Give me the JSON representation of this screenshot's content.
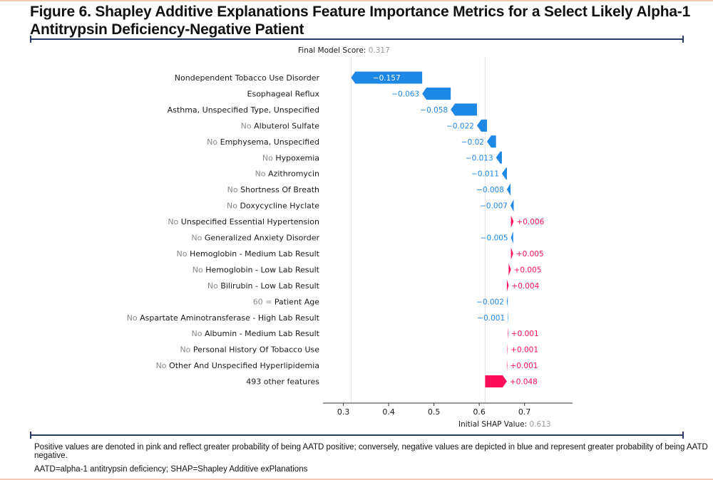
{
  "figure": {
    "title": "Figure 6. Shapley Additive Explanations Feature Importance Metrics for a Select Likely Alpha-1 Antitrypsin Deficiency-Negative Patient"
  },
  "footnotes": {
    "note1": "Positive values are denoted in pink and reflect greater probability of being AATD positive; conversely, negative values are depicted in blue and represent greater probability of being AATD negative.",
    "note2": "AATD=alpha-1 antitrypsin deficiency; SHAP=Shapley Additive exPlanations"
  },
  "colors": {
    "negative": "#1e88e5",
    "positive": "#ff0d57",
    "prefix_text": "#8a8a8a",
    "label_text": "#1a1a1a",
    "rule": "#2b3a67"
  },
  "chart_data": {
    "type": "waterfall",
    "final_score_label": "Final Model Score:",
    "final_score_value": "0.317",
    "final_score": 0.317,
    "base_label": "Initial SHAP Value:",
    "base_value_text": "0.613",
    "base_value": 0.613,
    "xlim": [
      0.255,
      0.806
    ],
    "xticks": [
      0.3,
      0.4,
      0.5,
      0.6,
      0.7
    ],
    "xtick_labels": [
      "0.3",
      "0.4",
      "0.5",
      "0.6",
      "0.7"
    ],
    "features": [
      {
        "prefix": "",
        "name": "Nondependent Tobacco Use Disorder",
        "value": -0.157,
        "label": "−0.157"
      },
      {
        "prefix": "",
        "name": "Esophageal Reflux",
        "value": -0.063,
        "label": "−0.063"
      },
      {
        "prefix": "",
        "name": "Asthma, Unspecified Type, Unspecified",
        "value": -0.058,
        "label": "−0.058"
      },
      {
        "prefix": "No",
        "name": "Albuterol Sulfate",
        "value": -0.022,
        "label": "−0.022"
      },
      {
        "prefix": "No",
        "name": "Emphysema, Unspecified",
        "value": -0.02,
        "label": "−0.02"
      },
      {
        "prefix": "No",
        "name": "Hypoxemia",
        "value": -0.013,
        "label": "−0.013"
      },
      {
        "prefix": "No",
        "name": "Azithromycin",
        "value": -0.011,
        "label": "−0.011"
      },
      {
        "prefix": "No",
        "name": "Shortness Of Breath",
        "value": -0.008,
        "label": "−0.008"
      },
      {
        "prefix": "No",
        "name": "Doxycycline Hyclate",
        "value": -0.007,
        "label": "−0.007"
      },
      {
        "prefix": "No",
        "name": "Unspecified Essential Hypertension",
        "value": 0.006,
        "label": "+0.006"
      },
      {
        "prefix": "No",
        "name": "Generalized Anxiety Disorder",
        "value": -0.005,
        "label": "−0.005"
      },
      {
        "prefix": "No",
        "name": "Hemoglobin - Medium Lab Result",
        "value": 0.005,
        "label": "+0.005"
      },
      {
        "prefix": "No",
        "name": "Hemoglobin - Low Lab Result",
        "value": 0.005,
        "label": "+0.005"
      },
      {
        "prefix": "No",
        "name": "Bilirubin - Low Lab Result",
        "value": 0.004,
        "label": "+0.004"
      },
      {
        "prefix": "60 =",
        "name": "Patient Age",
        "value": -0.002,
        "label": "−0.002"
      },
      {
        "prefix": "No",
        "name": "Aspartate Aminotransferase - High Lab Result",
        "value": -0.001,
        "label": "−0.001"
      },
      {
        "prefix": "No",
        "name": "Albumin - Medium Lab Result",
        "value": 0.001,
        "label": "+0.001"
      },
      {
        "prefix": "No",
        "name": "Personal History Of Tobacco Use",
        "value": 0.001,
        "label": "+0.001"
      },
      {
        "prefix": "No",
        "name": "Other And Unspecified Hyperlipidemia",
        "value": 0.001,
        "label": "+0.001"
      },
      {
        "prefix": "",
        "name": "493 other features",
        "value": 0.048,
        "label": "+0.048"
      }
    ]
  }
}
